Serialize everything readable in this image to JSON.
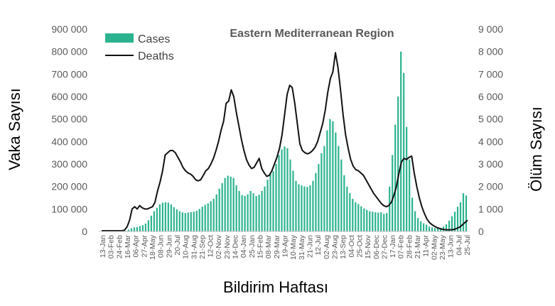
{
  "chart_data": {
    "type": "bar",
    "title": "Eastern Mediterranean Region",
    "xlabel": "Bildirim Haftası",
    "ylabel": "Vaka Sayısı",
    "y2label": "Ölüm Sayısı",
    "ylim": [
      0,
      900000
    ],
    "y2lim": [
      0,
      9000
    ],
    "yticks": [
      "0",
      "100 000",
      "200 000",
      "300 000",
      "400 000",
      "500 000",
      "600 000",
      "700 000",
      "800 000",
      "900 000"
    ],
    "y2ticks": [
      "0",
      "1 000",
      "2 000",
      "3 000",
      "4 000",
      "5 000",
      "6 000",
      "7 000",
      "8 000",
      "9 000"
    ],
    "grid": false,
    "legend": "top-left",
    "colors": {
      "cases": "#2bb38f",
      "deaths": "#111111"
    },
    "xtick_labels": [
      "13-Jan",
      "03-Feb",
      "24-Feb",
      "16-Mar",
      "06-Apr",
      "27-Apr",
      "18-May",
      "08-Jun",
      "29-Jun",
      "20-Jul",
      "10-Aug",
      "31-Aug",
      "21-Sep",
      "12-Oct",
      "02-Nov",
      "23-Nov",
      "14-Dec",
      "04-Jan",
      "25-Jan",
      "15-Feb",
      "08-Mar",
      "29-Mar",
      "19-Apr",
      "10-May",
      "31-May",
      "21-Jun",
      "12-Jul",
      "02-Aug",
      "23-Aug",
      "13-Sep",
      "04-Oct",
      "25-Oct",
      "15-Nov",
      "06-Dec",
      "27-Dec",
      "17-Jan",
      "07-Feb",
      "28-Feb",
      "21-Mar",
      "11-Apr",
      "02-May",
      "23-May",
      "13-Jun",
      "04-Jul",
      "25-Jul"
    ],
    "series": [
      {
        "name": "Cases",
        "type": "bar",
        "axis": "left",
        "values": [
          0,
          0,
          0,
          0,
          0,
          0,
          0,
          0,
          1000,
          3000,
          8000,
          14000,
          18000,
          20000,
          24000,
          28000,
          35000,
          50000,
          70000,
          90000,
          105000,
          120000,
          128000,
          130000,
          128000,
          120000,
          108000,
          98000,
          90000,
          85000,
          82000,
          84000,
          86000,
          88000,
          92000,
          100000,
          110000,
          118000,
          125000,
          135000,
          145000,
          165000,
          190000,
          215000,
          238000,
          248000,
          244000,
          238000,
          205000,
          180000,
          162000,
          158000,
          165000,
          180000,
          170000,
          158000,
          163000,
          180000,
          200000,
          230000,
          255000,
          268000,
          300000,
          340000,
          365000,
          378000,
          370000,
          320000,
          270000,
          225000,
          210000,
          205000,
          200000,
          198000,
          205000,
          225000,
          260000,
          300000,
          348000,
          380000,
          450000,
          500000,
          490000,
          440000,
          380000,
          320000,
          250000,
          200000,
          170000,
          145000,
          130000,
          122000,
          112000,
          102000,
          96000,
          90000,
          88000,
          85000,
          84000,
          85000,
          78000,
          82000,
          200000,
          340000,
          475000,
          600000,
          800000,
          705000,
          465000,
          320000,
          150000,
          90000,
          60000,
          45000,
          36000,
          30000,
          22000,
          18000,
          15000,
          14000,
          16000,
          22000,
          32000,
          48000,
          68000,
          88000,
          110000,
          130000,
          170000,
          160000
        ]
      },
      {
        "name": "Deaths",
        "type": "line",
        "axis": "right",
        "values": [
          30,
          30,
          30,
          30,
          30,
          30,
          30,
          30,
          30,
          60,
          200,
          500,
          1000,
          1100,
          1000,
          1150,
          1050,
          1000,
          1000,
          1050,
          1100,
          1300,
          1800,
          2200,
          2700,
          3400,
          3500,
          3600,
          3600,
          3500,
          3300,
          3100,
          2850,
          2700,
          2600,
          2550,
          2450,
          2300,
          2250,
          2300,
          2500,
          2700,
          2800,
          3000,
          3250,
          3600,
          4000,
          4500,
          4900,
          5700,
          5800,
          6300,
          6000,
          5300,
          4700,
          4100,
          3600,
          3200,
          2950,
          2800,
          2850,
          3050,
          3250,
          2800,
          2600,
          2450,
          2500,
          2700,
          3000,
          3300,
          3700,
          4300,
          5200,
          6100,
          6500,
          6400,
          5700,
          4800,
          3900,
          3600,
          3500,
          3450,
          3500,
          3600,
          3750,
          4000,
          4400,
          4800,
          5400,
          6200,
          6800,
          7100,
          7950,
          7300,
          6300,
          5200,
          4300,
          3700,
          3200,
          2900,
          2750,
          2700,
          2600,
          2500,
          2300,
          2100,
          1900,
          1700,
          1550,
          1400,
          1250,
          1150,
          1100,
          1150,
          1300,
          1600,
          2000,
          2600,
          3100,
          3250,
          3200,
          3300,
          3350,
          2600,
          2000,
          1500,
          1100,
          800,
          550,
          400,
          300,
          230,
          170,
          130,
          100,
          80,
          70,
          70,
          80,
          100,
          150,
          200,
          300,
          400,
          500
        ]
      }
    ]
  }
}
